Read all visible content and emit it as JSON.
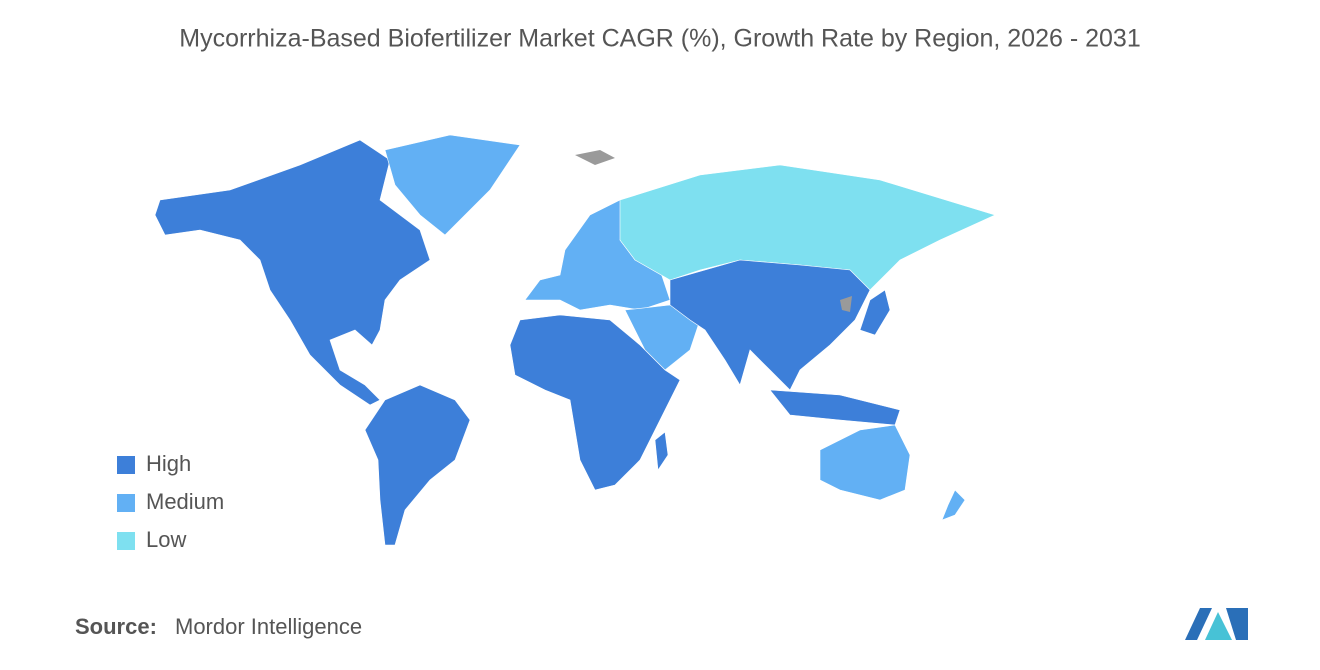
{
  "title": "Mycorrhiza-Based Biofertilizer Market CAGR (%), Growth Rate by Region, 2026 - 2031",
  "legend": [
    {
      "label": "High",
      "color": "#3d7fd9"
    },
    {
      "label": "Medium",
      "color": "#62b0f4"
    },
    {
      "label": "Low",
      "color": "#7ee0f0"
    }
  ],
  "source": {
    "label": "Source:",
    "text": "Mordor Intelligence"
  }
}
